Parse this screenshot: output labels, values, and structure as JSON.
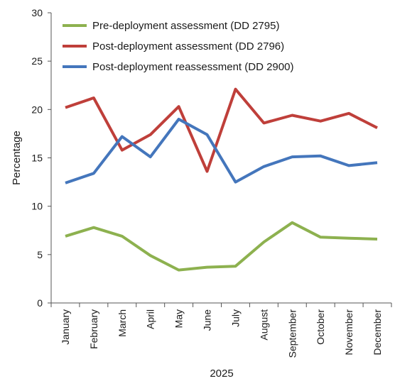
{
  "chart_data": {
    "type": "line",
    "categories": [
      "January",
      "February",
      "March",
      "April",
      "May",
      "June",
      "July",
      "August",
      "September",
      "October",
      "November",
      "December"
    ],
    "series": [
      {
        "name": "Pre-deployment assessment (DD 2795)",
        "color": "#8db14f",
        "values": [
          6.9,
          7.8,
          6.9,
          4.9,
          3.4,
          3.7,
          3.8,
          6.3,
          8.3,
          6.8,
          6.7,
          6.6
        ]
      },
      {
        "name": "Post-deployment assessment (DD 2796)",
        "color": "#bf3f3a",
        "values": [
          20.2,
          21.2,
          15.8,
          17.4,
          20.3,
          13.6,
          22.1,
          18.6,
          19.4,
          18.8,
          19.6,
          18.1
        ]
      },
      {
        "name": "Post-deployment reassessment (DD 2900)",
        "color": "#4476bc",
        "values": [
          12.4,
          13.4,
          17.2,
          15.1,
          19.0,
          17.4,
          12.5,
          14.1,
          15.1,
          15.2,
          14.2,
          14.5
        ]
      }
    ],
    "xlabel": "2025",
    "ylabel": "Percentage",
    "ylim": [
      0,
      30
    ],
    "yticks": [
      0,
      5,
      10,
      15,
      20,
      25,
      30
    ],
    "grid": false,
    "legend_position": "top"
  }
}
